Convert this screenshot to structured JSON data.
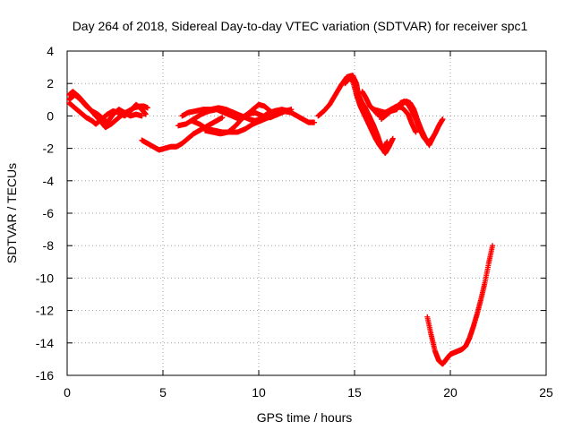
{
  "chart_data": {
    "type": "scatter",
    "title": "Day 264 of 2018, Sidereal Day-to-day VTEC variation (SDTVAR) for receiver spc1",
    "xlabel": "GPS time / hours",
    "ylabel": "SDTVAR / TECUs",
    "xlim": [
      0,
      25
    ],
    "ylim": [
      -16,
      4
    ],
    "xticks": [
      "0",
      "5",
      "10",
      "15",
      "20",
      "25"
    ],
    "yticks": [
      "-16",
      "-14",
      "-12",
      "-10",
      "-8",
      "-6",
      "-4",
      "-2",
      "0",
      "2",
      "4"
    ],
    "grid": true,
    "marker_color": "#ff0000",
    "series": [
      {
        "points": [
          [
            0.1,
            1.3
          ],
          [
            0.3,
            1.5
          ],
          [
            0.6,
            1.2
          ],
          [
            0.9,
            0.8
          ],
          [
            1.2,
            0.4
          ],
          [
            1.5,
            0.0
          ],
          [
            1.8,
            -0.4
          ],
          [
            2.0,
            -0.7
          ],
          [
            2.3,
            -0.5
          ],
          [
            2.6,
            -0.2
          ],
          [
            2.9,
            0.1
          ],
          [
            3.2,
            0.3
          ],
          [
            3.5,
            0.5
          ],
          [
            3.8,
            0.6
          ],
          [
            4.0,
            0.6
          ],
          [
            4.2,
            0.5
          ]
        ]
      },
      {
        "points": [
          [
            0.1,
            0.8
          ],
          [
            0.4,
            0.5
          ],
          [
            0.7,
            0.2
          ],
          [
            1.0,
            -0.1
          ],
          [
            1.3,
            -0.3
          ],
          [
            1.5,
            -0.5
          ],
          [
            1.8,
            -0.2
          ],
          [
            2.1,
            0.1
          ],
          [
            2.4,
            0.3
          ],
          [
            2.7,
            0.2
          ],
          [
            3.0,
            0.0
          ],
          [
            3.3,
            0.3
          ],
          [
            3.6,
            0.7
          ],
          [
            3.9,
            0.4
          ],
          [
            4.1,
            0.1
          ]
        ]
      },
      {
        "points": [
          [
            0.1,
            1.0
          ],
          [
            0.4,
            1.3
          ],
          [
            0.7,
            1.0
          ],
          [
            1.0,
            0.6
          ],
          [
            1.3,
            0.3
          ],
          [
            1.6,
            0.1
          ],
          [
            1.9,
            -0.2
          ],
          [
            2.1,
            -0.4
          ],
          [
            2.4,
            0.1
          ],
          [
            2.7,
            0.4
          ],
          [
            3.0,
            0.2
          ],
          [
            3.3,
            0.0
          ],
          [
            3.6,
            0.1
          ],
          [
            3.9,
            0.0
          ]
        ]
      },
      {
        "points": [
          [
            3.9,
            -1.5
          ],
          [
            4.2,
            -1.7
          ],
          [
            4.5,
            -1.9
          ],
          [
            4.8,
            -2.1
          ],
          [
            5.1,
            -2.0
          ],
          [
            5.4,
            -1.9
          ],
          [
            5.7,
            -1.9
          ],
          [
            6.0,
            -1.7
          ],
          [
            6.3,
            -1.4
          ],
          [
            6.6,
            -1.1
          ],
          [
            6.9,
            -0.9
          ],
          [
            7.2,
            -0.7
          ],
          [
            7.5,
            -0.5
          ],
          [
            7.8,
            -0.3
          ],
          [
            8.1,
            -0.1
          ]
        ]
      },
      {
        "points": [
          [
            6.0,
            0.0
          ],
          [
            6.3,
            0.2
          ],
          [
            6.7,
            0.3
          ],
          [
            7.1,
            0.4
          ],
          [
            7.5,
            0.4
          ],
          [
            7.9,
            0.5
          ],
          [
            8.3,
            0.4
          ],
          [
            8.7,
            0.2
          ],
          [
            9.1,
            0.0
          ],
          [
            9.5,
            -0.2
          ],
          [
            9.8,
            -0.3
          ],
          [
            10.1,
            -0.2
          ],
          [
            10.4,
            0.1
          ],
          [
            10.8,
            0.3
          ],
          [
            11.2,
            0.4
          ],
          [
            11.6,
            0.3
          ]
        ]
      },
      {
        "points": [
          [
            5.8,
            -0.6
          ],
          [
            6.2,
            -0.5
          ],
          [
            6.6,
            -0.2
          ],
          [
            7.0,
            0.1
          ],
          [
            7.4,
            0.3
          ],
          [
            7.8,
            0.4
          ],
          [
            8.2,
            0.2
          ],
          [
            8.6,
            0.0
          ],
          [
            9.0,
            -0.2
          ],
          [
            9.4,
            0.1
          ],
          [
            9.7,
            0.4
          ],
          [
            10.0,
            0.7
          ],
          [
            10.3,
            0.6
          ],
          [
            10.6,
            0.3
          ],
          [
            10.9,
            0.1
          ],
          [
            11.2,
            0.2
          ]
        ]
      },
      {
        "points": [
          [
            6.5,
            -0.3
          ],
          [
            6.9,
            -0.5
          ],
          [
            7.3,
            -0.8
          ],
          [
            7.7,
            -0.9
          ],
          [
            8.1,
            -1.0
          ],
          [
            8.5,
            -1.0
          ],
          [
            8.9,
            -1.0
          ],
          [
            9.3,
            -0.8
          ],
          [
            9.7,
            -0.5
          ],
          [
            10.1,
            -0.3
          ],
          [
            10.5,
            -0.1
          ],
          [
            10.9,
            0.1
          ],
          [
            11.3,
            0.3
          ],
          [
            11.7,
            0.2
          ],
          [
            12.0,
            0.0
          ],
          [
            12.3,
            -0.2
          ],
          [
            12.6,
            -0.4
          ],
          [
            12.9,
            -0.4
          ]
        ]
      },
      {
        "points": [
          [
            7.2,
            -0.9
          ],
          [
            7.6,
            -1.0
          ],
          [
            8.0,
            -1.1
          ],
          [
            8.4,
            -1.0
          ],
          [
            8.8,
            -0.6
          ],
          [
            9.1,
            -0.2
          ],
          [
            9.4,
            0.1
          ],
          [
            9.8,
            0.2
          ],
          [
            10.2,
            0.0
          ],
          [
            10.6,
            -0.1
          ],
          [
            11.0,
            0.1
          ],
          [
            11.4,
            0.3
          ],
          [
            11.7,
            0.4
          ]
        ]
      },
      {
        "points": [
          [
            13.1,
            0.0
          ],
          [
            13.4,
            0.3
          ],
          [
            13.7,
            0.7
          ],
          [
            14.0,
            1.3
          ],
          [
            14.3,
            1.9
          ],
          [
            14.6,
            2.4
          ],
          [
            14.9,
            2.5
          ],
          [
            15.1,
            2.0
          ],
          [
            15.2,
            1.3
          ],
          [
            15.4,
            0.8
          ],
          [
            15.6,
            0.4
          ],
          [
            15.8,
            -0.1
          ],
          [
            16.0,
            -0.6
          ],
          [
            16.2,
            -1.2
          ],
          [
            16.4,
            -1.9
          ],
          [
            16.6,
            -2.3
          ],
          [
            16.8,
            -1.9
          ],
          [
            17.0,
            -1.4
          ]
        ]
      },
      {
        "points": [
          [
            14.5,
            2.0
          ],
          [
            14.7,
            2.3
          ],
          [
            14.9,
            2.2
          ],
          [
            15.1,
            1.3
          ],
          [
            15.3,
            0.6
          ],
          [
            15.5,
            0.1
          ],
          [
            15.7,
            -0.4
          ],
          [
            15.9,
            -0.9
          ],
          [
            16.1,
            -1.4
          ],
          [
            16.3,
            -1.8
          ],
          [
            16.5,
            -2.1
          ],
          [
            16.7,
            -1.6
          ]
        ]
      },
      {
        "points": [
          [
            15.4,
            1.5
          ],
          [
            15.6,
            1.1
          ],
          [
            15.8,
            0.6
          ],
          [
            16.0,
            0.4
          ],
          [
            16.3,
            0.3
          ],
          [
            16.6,
            0.2
          ],
          [
            16.9,
            0.3
          ],
          [
            17.2,
            0.4
          ],
          [
            17.4,
            0.8
          ],
          [
            17.6,
            0.9
          ],
          [
            17.8,
            0.7
          ],
          [
            18.0,
            0.3
          ],
          [
            18.2,
            -0.2
          ],
          [
            18.4,
            -0.8
          ],
          [
            18.6,
            -1.3
          ],
          [
            18.8,
            -1.6
          ],
          [
            19.0,
            -1.5
          ],
          [
            19.2,
            -1.1
          ],
          [
            19.4,
            -0.6
          ],
          [
            19.6,
            -0.2
          ]
        ]
      },
      {
        "points": [
          [
            15.9,
            0.5
          ],
          [
            16.2,
            0.1
          ],
          [
            16.5,
            -0.1
          ],
          [
            16.8,
            0.2
          ],
          [
            17.1,
            0.5
          ],
          [
            17.4,
            0.7
          ],
          [
            17.7,
            0.9
          ],
          [
            17.9,
            0.8
          ],
          [
            18.1,
            0.4
          ],
          [
            18.3,
            -0.3
          ],
          [
            18.5,
            -0.9
          ],
          [
            18.7,
            -1.4
          ],
          [
            18.9,
            -1.8
          ],
          [
            19.1,
            -1.3
          ]
        ]
      },
      {
        "points": [
          [
            16.4,
            -0.2
          ],
          [
            16.6,
            0.2
          ],
          [
            16.9,
            0.4
          ],
          [
            17.2,
            0.6
          ],
          [
            17.5,
            0.5
          ],
          [
            17.8,
            0.1
          ],
          [
            18.0,
            -0.5
          ],
          [
            18.2,
            -1.0
          ]
        ]
      },
      {
        "points": [
          [
            18.8,
            -12.4
          ],
          [
            19.0,
            -13.5
          ],
          [
            19.2,
            -14.5
          ],
          [
            19.4,
            -15.1
          ],
          [
            19.6,
            -15.3
          ],
          [
            19.8,
            -15.0
          ],
          [
            20.0,
            -14.7
          ],
          [
            20.2,
            -14.6
          ],
          [
            20.4,
            -14.5
          ],
          [
            20.6,
            -14.4
          ],
          [
            20.8,
            -14.2
          ],
          [
            21.0,
            -13.7
          ],
          [
            21.2,
            -13.0
          ],
          [
            21.4,
            -12.2
          ],
          [
            21.6,
            -11.3
          ],
          [
            21.8,
            -10.3
          ],
          [
            22.0,
            -9.1
          ],
          [
            22.2,
            -8.0
          ]
        ]
      }
    ]
  }
}
